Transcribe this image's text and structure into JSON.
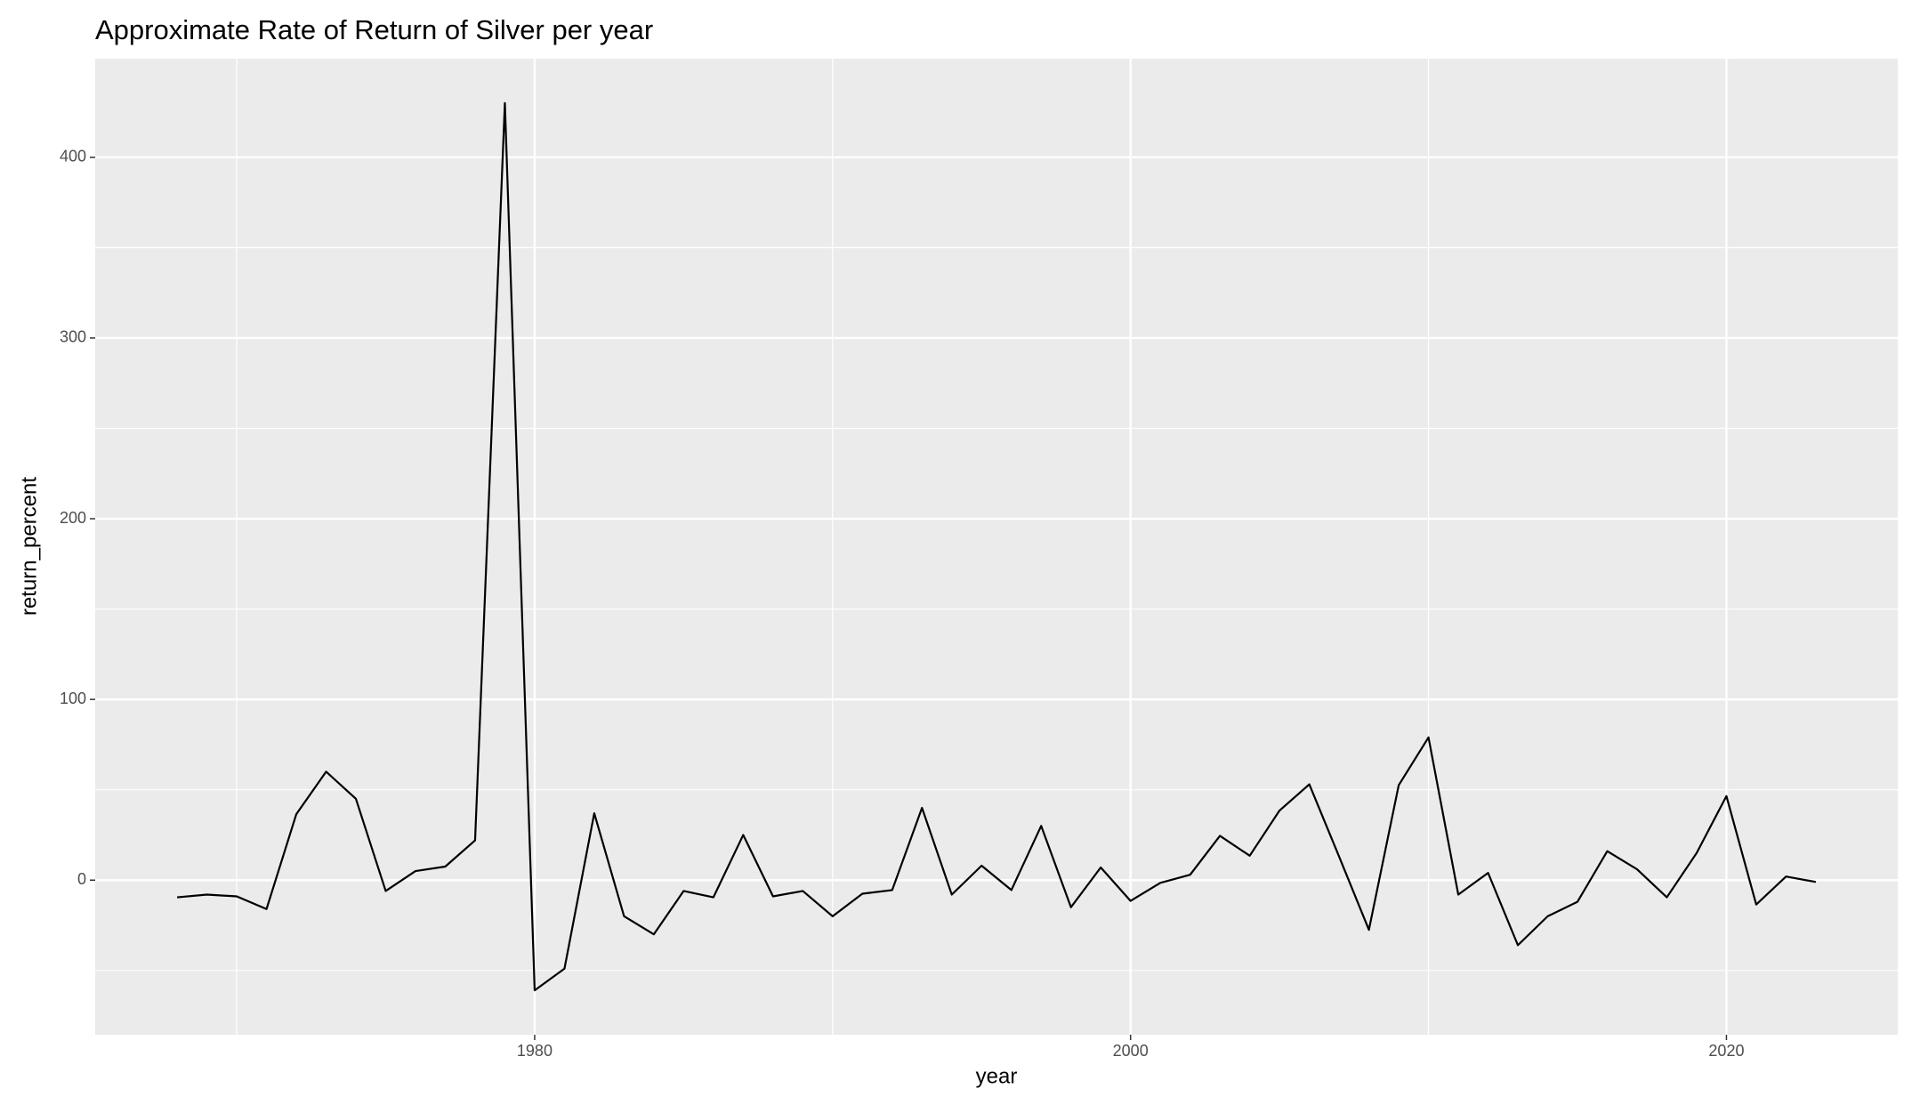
{
  "chart_data": {
    "type": "line",
    "title": "Approximate Rate of Return of Silver per year",
    "x_label": "year",
    "y_label": "return_percent",
    "x": [
      1968,
      1969,
      1970,
      1971,
      1972,
      1973,
      1974,
      1975,
      1976,
      1977,
      1978,
      1979,
      1980,
      1981,
      1982,
      1983,
      1984,
      1985,
      1986,
      1987,
      1988,
      1989,
      1990,
      1991,
      1992,
      1993,
      1994,
      1995,
      1996,
      1997,
      1998,
      1999,
      2000,
      2001,
      2002,
      2003,
      2004,
      2005,
      2006,
      2007,
      2008,
      2009,
      2010,
      2011,
      2012,
      2013,
      2014,
      2015,
      2016,
      2017,
      2018,
      2019,
      2020,
      2021,
      2022,
      2023
    ],
    "series": [
      {
        "name": "return_percent",
        "color": "#000000",
        "values": [
          -9.5,
          -8,
          -9,
          -16,
          36.5,
          60,
          45,
          -6,
          5,
          7.5,
          22,
          430,
          -61,
          -49,
          37,
          -20,
          -30,
          -6,
          -9.5,
          25,
          -9,
          -6,
          -20,
          -7.5,
          -5.5,
          40,
          -8,
          8,
          -5.5,
          30,
          -15,
          7,
          -11.5,
          -1.5,
          3,
          24.5,
          13.5,
          38.5,
          53,
          13,
          -27.5,
          52.5,
          79,
          -8,
          4,
          -36,
          -20,
          -12,
          16,
          6,
          -9.5,
          15,
          46.5,
          -13.5,
          2,
          -1
        ]
      }
    ],
    "xlim": [
      1965.25,
      2025.75
    ],
    "ylim": [
      -85.55,
      454.55
    ],
    "xticks": [
      1980,
      2000,
      2020
    ],
    "yticks": [
      0,
      100,
      200,
      300,
      400
    ],
    "xminor": [
      1970,
      1990,
      2010
    ],
    "yminor": [
      -50,
      50,
      150,
      250,
      350
    ],
    "grid": true
  }
}
